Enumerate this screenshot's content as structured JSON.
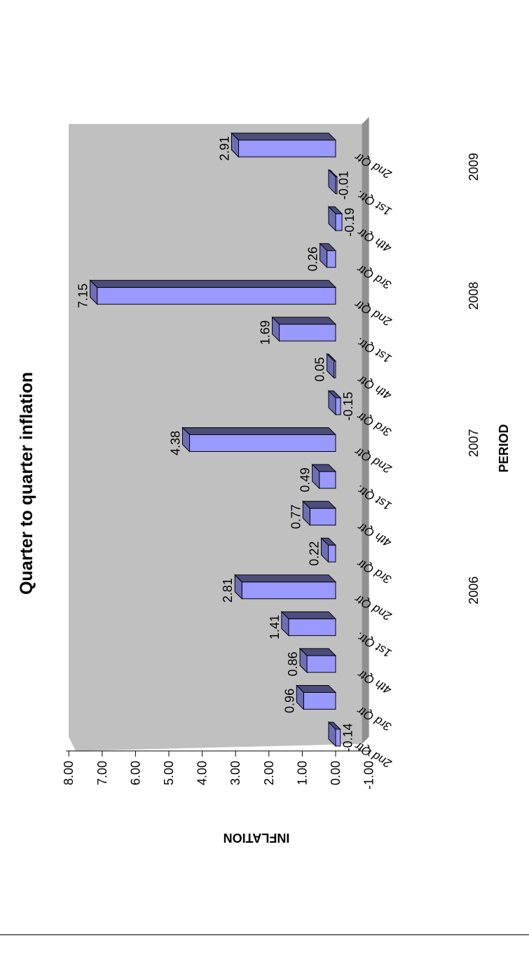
{
  "colors": {
    "bar_front": "#9999ff",
    "bar_top": "#4d4d7a",
    "bar_side": "#6e6eb8",
    "wall": "#c0c0c0",
    "floor": "#909090",
    "wall_edge": "#808080"
  },
  "chart_data": {
    "type": "bar",
    "title": "Quarter to quarter inflation",
    "xlabel": "PERIOD",
    "ylabel": "INFLATION",
    "ylim": [
      -1,
      8
    ],
    "yticks": [
      "8.00",
      "7.00",
      "6.00",
      "5.00",
      "4.00",
      "3.00",
      "2.00",
      "1.00",
      "0.00",
      "-1.00"
    ],
    "categories": [
      "2nd Qtr",
      "3rd Qtr",
      "4th Qtr",
      "1st Qtr.",
      "2nd Qtr",
      "3rd Qtr",
      "4th Qtr",
      "1st Qtr.",
      "2nd Qtr",
      "3rd Qtr",
      "4th Qtr",
      "1st Qtr.",
      "2nd Qtr",
      "3rd Qtr",
      "4th Qtr",
      "1st Qtr.",
      "2nd Qtr"
    ],
    "values": [
      -0.14,
      0.96,
      0.86,
      1.41,
      2.81,
      0.22,
      0.77,
      0.49,
      4.38,
      -0.15,
      0.05,
      1.69,
      7.15,
      0.26,
      -0.19,
      -0.01,
      2.91
    ],
    "value_labels": [
      "-0.14",
      "0.96",
      "0.86",
      "1.41",
      "2.81",
      "0.22",
      "0.77",
      "0.49",
      "4.38",
      "-0.15",
      "0.05",
      "1.69",
      "7.15",
      "0.26",
      "-0.19",
      "-0.01",
      "2.91"
    ],
    "year_groups": [
      {
        "label": "2006",
        "center_index": 4
      },
      {
        "label": "2007",
        "center_index": 8
      },
      {
        "label": "2008",
        "center_index": 12
      },
      {
        "label": "2009",
        "center_index": 15.5
      }
    ],
    "orientation": "rotated 90° clockwise on page",
    "style": "3d-column",
    "legend": "none"
  }
}
